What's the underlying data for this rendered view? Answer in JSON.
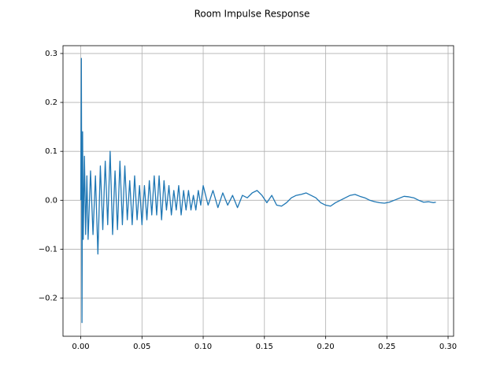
{
  "chart_data": {
    "type": "line",
    "title": "Room Impulse Response",
    "color": "#1f77b4",
    "grid": true,
    "xlim": [
      -0.0145,
      0.3045
    ],
    "ylim": [
      -0.278,
      0.316
    ],
    "xticks": [
      {
        "value": 0,
        "label": "0.00"
      },
      {
        "value": 0.05,
        "label": "0.05"
      },
      {
        "value": 0.1,
        "label": "0.10"
      },
      {
        "value": 0.15,
        "label": "0.15"
      },
      {
        "value": 0.2,
        "label": "0.20"
      },
      {
        "value": 0.25,
        "label": "0.25"
      },
      {
        "value": 0.3,
        "label": "0.30"
      }
    ],
    "yticks": [
      {
        "value": -0.2,
        "label": "−0.2"
      },
      {
        "value": -0.1,
        "label": "−0.1"
      },
      {
        "value": 0,
        "label": "0.0"
      },
      0.1,
      0.2,
      0.3
    ],
    "x": [
      0,
      0.0005,
      0.001,
      0.0015,
      0.002,
      0.003,
      0.004,
      0.005,
      0.006,
      0.008,
      0.01,
      0.012,
      0.014,
      0.016,
      0.018,
      0.02,
      0.022,
      0.024,
      0.026,
      0.028,
      0.03,
      0.032,
      0.034,
      0.036,
      0.038,
      0.04,
      0.042,
      0.044,
      0.046,
      0.048,
      0.05,
      0.052,
      0.054,
      0.056,
      0.058,
      0.06,
      0.062,
      0.064,
      0.066,
      0.068,
      0.07,
      0.072,
      0.074,
      0.076,
      0.078,
      0.08,
      0.082,
      0.084,
      0.086,
      0.088,
      0.09,
      0.092,
      0.094,
      0.096,
      0.098,
      0.1,
      0.104,
      0.108,
      0.112,
      0.116,
      0.12,
      0.124,
      0.128,
      0.132,
      0.136,
      0.14,
      0.144,
      0.148,
      0.152,
      0.156,
      0.16,
      0.164,
      0.168,
      0.172,
      0.176,
      0.18,
      0.184,
      0.188,
      0.192,
      0.196,
      0.2,
      0.204,
      0.208,
      0.212,
      0.216,
      0.22,
      0.224,
      0.228,
      0.232,
      0.236,
      0.24,
      0.244,
      0.248,
      0.252,
      0.256,
      0.26,
      0.264,
      0.268,
      0.272,
      0.276,
      0.28,
      0.284,
      0.288,
      0.29
    ],
    "values": [
      0,
      0.29,
      -0.25,
      0.14,
      -0.08,
      0.09,
      -0.07,
      0.05,
      -0.08,
      0.06,
      -0.07,
      0.05,
      -0.11,
      0.07,
      -0.06,
      0.08,
      -0.05,
      0.1,
      -0.07,
      0.06,
      -0.06,
      0.08,
      -0.05,
      0.07,
      -0.04,
      0.04,
      -0.05,
      0.05,
      -0.04,
      0.03,
      -0.05,
      0.03,
      -0.04,
      0.04,
      -0.03,
      0.05,
      -0.03,
      0.05,
      -0.04,
      0.04,
      -0.02,
      0.03,
      -0.03,
      0.02,
      -0.02,
      0.03,
      -0.03,
      0.02,
      -0.02,
      0.02,
      -0.02,
      0.01,
      -0.02,
      0.02,
      -0.01,
      0.03,
      -0.01,
      0.02,
      -0.015,
      0.015,
      -0.01,
      0.01,
      -0.015,
      0.01,
      0.005,
      0.015,
      0.02,
      0.01,
      -0.005,
      0.01,
      -0.01,
      -0.012,
      -0.005,
      0.005,
      0.01,
      0.012,
      0.015,
      0.01,
      0.005,
      -0.005,
      -0.01,
      -0.012,
      -0.005,
      0,
      0.005,
      0.01,
      0.012,
      0.008,
      0.005,
      0,
      -0.003,
      -0.005,
      -0.006,
      -0.004,
      0,
      0.004,
      0.008,
      0.007,
      0.005,
      0,
      -0.004,
      -0.003,
      -0.005,
      -0.004
    ]
  }
}
